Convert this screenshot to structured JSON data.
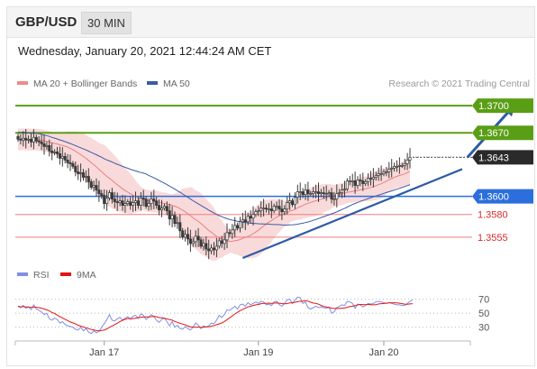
{
  "header": {
    "symbol": "GBP/USD",
    "timeframe": "30 MIN",
    "datetime": "Wednesday, January 20, 2021 12:44:24 AM CET"
  },
  "colors": {
    "candle": "#3a3a3a",
    "band_fill": "#f8d6d6",
    "ma20": "#e88080",
    "ma50": "#3a5aa8",
    "resistance": "#5a9e16",
    "support": "#2c6fdc",
    "pivot_line": "#f07f7f",
    "pivot_label": "#d92a2a",
    "current": "#2a2a2a",
    "trend": "#2d5ba6",
    "rsi": "#7f8fe6",
    "rsi_ma": "#e11515"
  },
  "chart_data": [
    {
      "type": "candlestick",
      "legend": [
        {
          "name": "MA 20 + Bollinger Bands",
          "color": "#f08a8a"
        },
        {
          "name": "MA 50",
          "color": "#3a5aa8"
        }
      ],
      "credit": "Research © 2021 Trading Central",
      "x_ticks": [
        {
          "label": "Jan 17",
          "index": 33
        },
        {
          "label": "Jan 19",
          "index": 92
        },
        {
          "label": "Jan 20",
          "index": 140
        }
      ],
      "ylim": [
        1.3528,
        1.3712
      ],
      "levels": [
        {
          "label": "1.3700",
          "value": 1.37,
          "kind": "resistance"
        },
        {
          "label": "1.3670",
          "value": 1.367,
          "kind": "resistance"
        },
        {
          "label": "1.3643",
          "value": 1.3643,
          "kind": "current"
        },
        {
          "label": "1.3600",
          "value": 1.36,
          "kind": "support"
        },
        {
          "label": "1.3580",
          "value": 1.358,
          "kind": "pivot"
        },
        {
          "label": "1.3555",
          "value": 1.3555,
          "kind": "pivot"
        }
      ],
      "trendline": {
        "from": [
          86,
          1.3532
        ],
        "to": [
          170,
          1.363
        ]
      },
      "forecast_arrow": {
        "from": [
          172,
          1.3643
        ],
        "to": [
          190,
          1.37
        ]
      },
      "closes": [
        1.3663,
        1.3662,
        1.3664,
        1.3662,
        1.3663,
        1.366,
        1.3665,
        1.3661,
        1.366,
        1.3658,
        1.3655,
        1.3656,
        1.365,
        1.3648,
        1.3649,
        1.3647,
        1.3642,
        1.3644,
        1.364,
        1.3637,
        1.3636,
        1.3633,
        1.3627,
        1.3625,
        1.3626,
        1.3621,
        1.3622,
        1.3616,
        1.361,
        1.3612,
        1.3607,
        1.3603,
        1.3601,
        1.3592,
        1.3598,
        1.3604,
        1.3597,
        1.3594,
        1.3593,
        1.3595,
        1.359,
        1.3592,
        1.3594,
        1.359,
        1.3593,
        1.3595,
        1.359,
        1.3598,
        1.3597,
        1.3589,
        1.3592,
        1.3597,
        1.3595,
        1.359,
        1.3585,
        1.3587,
        1.3589,
        1.3584,
        1.3575,
        1.3579,
        1.357,
        1.3571,
        1.3562,
        1.3555,
        1.3558,
        1.3553,
        1.3548,
        1.355,
        1.3556,
        1.3552,
        1.3545,
        1.3548,
        1.3542,
        1.354,
        1.3543,
        1.3541,
        1.3545,
        1.3551,
        1.3548,
        1.3552,
        1.356,
        1.3559,
        1.3563,
        1.3568,
        1.3565,
        1.3572,
        1.3574,
        1.3572,
        1.3578,
        1.3576,
        1.358,
        1.3583,
        1.3584,
        1.3587,
        1.3587,
        1.3586,
        1.3586,
        1.3584,
        1.3589,
        1.3589,
        1.3586,
        1.3583,
        1.3586,
        1.3593,
        1.3595,
        1.3591,
        1.3599,
        1.3605,
        1.3605,
        1.3602,
        1.3607,
        1.3603,
        1.3603,
        1.3605,
        1.3605,
        1.3603,
        1.3604,
        1.3603,
        1.3603,
        1.3604,
        1.3597,
        1.3597,
        1.3603,
        1.3604,
        1.3607,
        1.3608,
        1.3617,
        1.3617,
        1.3617,
        1.3612,
        1.3618,
        1.3617,
        1.3614,
        1.3616,
        1.362,
        1.3619,
        1.3621,
        1.3623,
        1.3625,
        1.3625,
        1.3627,
        1.3627,
        1.363,
        1.3631,
        1.3633,
        1.3633,
        1.3634,
        1.3634,
        1.3636,
        1.364,
        1.3643
      ]
    },
    {
      "type": "line",
      "series": [
        {
          "name": "RSI",
          "color": "#7f8fe6"
        },
        {
          "name": "9MA",
          "color": "#e11515"
        }
      ],
      "ylim": [
        18,
        85
      ],
      "y_ticks": [
        70,
        50,
        30
      ],
      "rsi_values": [
        60,
        58,
        61,
        57,
        59,
        55,
        62,
        56,
        54,
        52,
        48,
        50,
        42,
        40,
        43,
        41,
        36,
        38,
        34,
        32,
        31,
        30,
        27,
        26,
        30,
        25,
        28,
        23,
        21,
        25,
        22,
        24,
        30,
        35,
        41,
        48,
        40,
        39,
        42,
        44,
        40,
        43,
        45,
        41,
        46,
        47,
        43,
        49,
        47,
        41,
        44,
        48,
        45,
        40,
        37,
        41,
        43,
        38,
        32,
        38,
        30,
        33,
        28,
        27,
        31,
        28,
        26,
        30,
        36,
        33,
        28,
        32,
        30,
        32,
        36,
        35,
        40,
        47,
        44,
        48,
        55,
        54,
        57,
        60,
        56,
        62,
        63,
        60,
        65,
        62,
        64,
        66,
        64,
        67,
        66,
        62,
        63,
        61,
        66,
        67,
        62,
        60,
        64,
        69,
        70,
        64,
        69,
        73,
        72,
        64,
        66,
        58,
        56,
        58,
        60,
        58,
        59,
        58,
        57,
        59,
        50,
        52,
        58,
        60,
        62,
        61,
        67,
        66,
        64,
        57,
        63,
        62,
        59,
        61,
        64,
        63,
        64,
        66,
        67,
        66,
        65,
        64,
        65,
        64,
        63,
        62,
        62,
        61,
        61,
        64,
        67,
        69
      ]
    }
  ]
}
